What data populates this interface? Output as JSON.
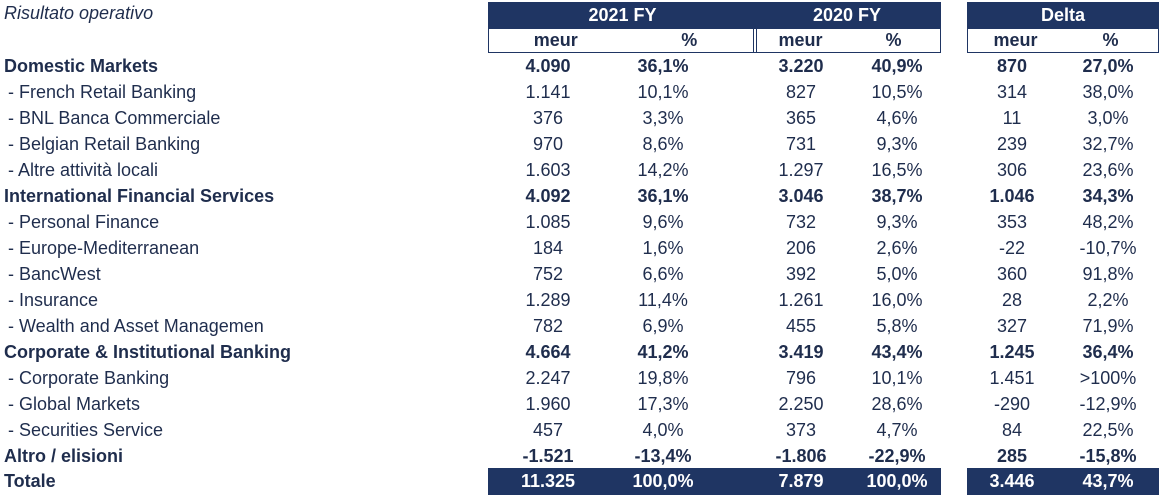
{
  "title": "Risultato operativo",
  "groups": [
    {
      "label": "2021 FY",
      "cols": [
        "meur",
        "%"
      ]
    },
    {
      "label": "2020 FY",
      "cols": [
        "meur",
        "%"
      ]
    },
    {
      "label": "Delta",
      "cols": [
        "meur",
        "%"
      ]
    }
  ],
  "rows": [
    {
      "label": "Domestic Markets",
      "bold": true,
      "v": [
        "4.090",
        "36,1%",
        "3.220",
        "40,9%",
        "870",
        "27,0%"
      ]
    },
    {
      "label": " - French Retail Banking",
      "bold": false,
      "v": [
        "1.141",
        "10,1%",
        "827",
        "10,5%",
        "314",
        "38,0%"
      ]
    },
    {
      "label": " - BNL Banca Commerciale",
      "bold": false,
      "v": [
        "376",
        "3,3%",
        "365",
        "4,6%",
        "11",
        "3,0%"
      ]
    },
    {
      "label": " - Belgian Retail Banking",
      "bold": false,
      "v": [
        "970",
        "8,6%",
        "731",
        "9,3%",
        "239",
        "32,7%"
      ]
    },
    {
      "label": " - Altre attività locali",
      "bold": false,
      "v": [
        "1.603",
        "14,2%",
        "1.297",
        "16,5%",
        "306",
        "23,6%"
      ]
    },
    {
      "label": "International Financial Services",
      "bold": true,
      "v": [
        "4.092",
        "36,1%",
        "3.046",
        "38,7%",
        "1.046",
        "34,3%"
      ]
    },
    {
      "label": " - Personal Finance",
      "bold": false,
      "v": [
        "1.085",
        "9,6%",
        "732",
        "9,3%",
        "353",
        "48,2%"
      ]
    },
    {
      "label": " - Europe-Mediterranean",
      "bold": false,
      "v": [
        "184",
        "1,6%",
        "206",
        "2,6%",
        "-22",
        "-10,7%"
      ]
    },
    {
      "label": " - BancWest",
      "bold": false,
      "v": [
        "752",
        "6,6%",
        "392",
        "5,0%",
        "360",
        "91,8%"
      ]
    },
    {
      "label": " - Insurance",
      "bold": false,
      "v": [
        "1.289",
        "11,4%",
        "1.261",
        "16,0%",
        "28",
        "2,2%"
      ]
    },
    {
      "label": " - Wealth and Asset Managemen",
      "bold": false,
      "v": [
        "782",
        "6,9%",
        "455",
        "5,8%",
        "327",
        "71,9%"
      ]
    },
    {
      "label": "Corporate & Institutional Banking",
      "bold": true,
      "v": [
        "4.664",
        "41,2%",
        "3.419",
        "43,4%",
        "1.245",
        "36,4%"
      ]
    },
    {
      "label": " - Corporate Banking",
      "bold": false,
      "v": [
        "2.247",
        "19,8%",
        "796",
        "10,1%",
        "1.451",
        ">100%"
      ]
    },
    {
      "label": " - Global Markets",
      "bold": false,
      "v": [
        "1.960",
        "17,3%",
        "2.250",
        "28,6%",
        "-290",
        "-12,9%"
      ]
    },
    {
      "label": " - Securities Service",
      "bold": false,
      "v": [
        "457",
        "4,0%",
        "373",
        "4,7%",
        "84",
        "22,5%"
      ]
    },
    {
      "label": "Altro / elisioni",
      "bold": true,
      "v": [
        "-1.521",
        "-13,4%",
        "-1.806",
        "-22,9%",
        "285",
        "-15,8%"
      ]
    }
  ],
  "total": {
    "label": "Totale",
    "v": [
      "11.325",
      "100,0%",
      "7.879",
      "100,0%",
      "3.446",
      "43,7%"
    ]
  }
}
